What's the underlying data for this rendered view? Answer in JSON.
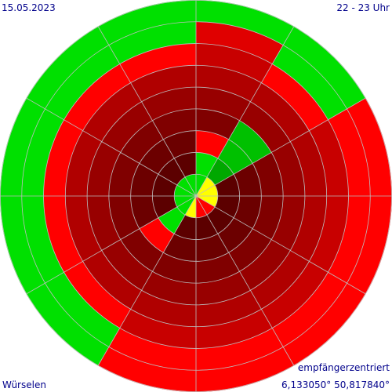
{
  "header": {
    "date": "15.05.2023",
    "time_range": "22 - 23 Uhr"
  },
  "footer": {
    "mode": "empfängerzentriert",
    "location": "Würselen",
    "coordinates": "6,133050° 50,817840°"
  },
  "colors": {
    "background": "#ffffff",
    "grid": "#bdbdbd",
    "text": "#00008b",
    "green_bright": "#00e000",
    "green_mid": "#00c000",
    "green_dark": "#00a800",
    "yellow": "#ffff00",
    "red_bright": "#ff0000",
    "red_shades": [
      "#ff0000",
      "#e00000",
      "#c80000",
      "#b00000",
      "#980000",
      "#800000",
      "#6c0000",
      "#5c0000",
      "#500000"
    ]
  },
  "polar": {
    "rings": 9,
    "sector_degrees": 30,
    "sectors": [
      {
        "label": "0-30",
        "rings": [
          "G",
          "G",
          "R",
          "D",
          "D",
          "D",
          "D",
          "D",
          "G"
        ]
      },
      {
        "label": "30-60",
        "rings": [
          "Y",
          "M",
          "M",
          "M",
          "D",
          "D",
          "R",
          "G",
          "G"
        ]
      },
      {
        "label": "60-90",
        "rings": [
          "Y",
          "D",
          "D",
          "D",
          "D",
          "D",
          "D",
          "R",
          "R"
        ]
      },
      {
        "label": "90-120",
        "rings": [
          "Y",
          "D",
          "D",
          "D",
          "D",
          "D",
          "D",
          "R",
          "R"
        ]
      },
      {
        "label": "120-150",
        "rings": [
          "R",
          "D",
          "D",
          "D",
          "D",
          "D",
          "D",
          "R",
          "R"
        ]
      },
      {
        "label": "150-180",
        "rings": [
          "R",
          "D",
          "D",
          "D",
          "D",
          "D",
          "D",
          "R",
          "R"
        ]
      },
      {
        "label": "180-210",
        "rings": [
          "Y",
          "D",
          "D",
          "D",
          "D",
          "D",
          "D",
          "R",
          "R"
        ]
      },
      {
        "label": "210-240",
        "rings": [
          "G",
          "G",
          "R",
          "D",
          "D",
          "D",
          "R",
          "G",
          "G"
        ]
      },
      {
        "label": "240-270",
        "rings": [
          "G",
          "D",
          "D",
          "D",
          "D",
          "D",
          "R",
          "G",
          "G"
        ]
      },
      {
        "label": "270-300",
        "rings": [
          "G",
          "D",
          "D",
          "D",
          "D",
          "D",
          "R",
          "G",
          "G"
        ]
      },
      {
        "label": "300-330",
        "rings": [
          "G",
          "D",
          "D",
          "D",
          "D",
          "D",
          "R",
          "G",
          "G"
        ]
      },
      {
        "label": "330-360",
        "rings": [
          "G",
          "D",
          "D",
          "D",
          "D",
          "D",
          "R",
          "G",
          "G"
        ]
      }
    ]
  }
}
